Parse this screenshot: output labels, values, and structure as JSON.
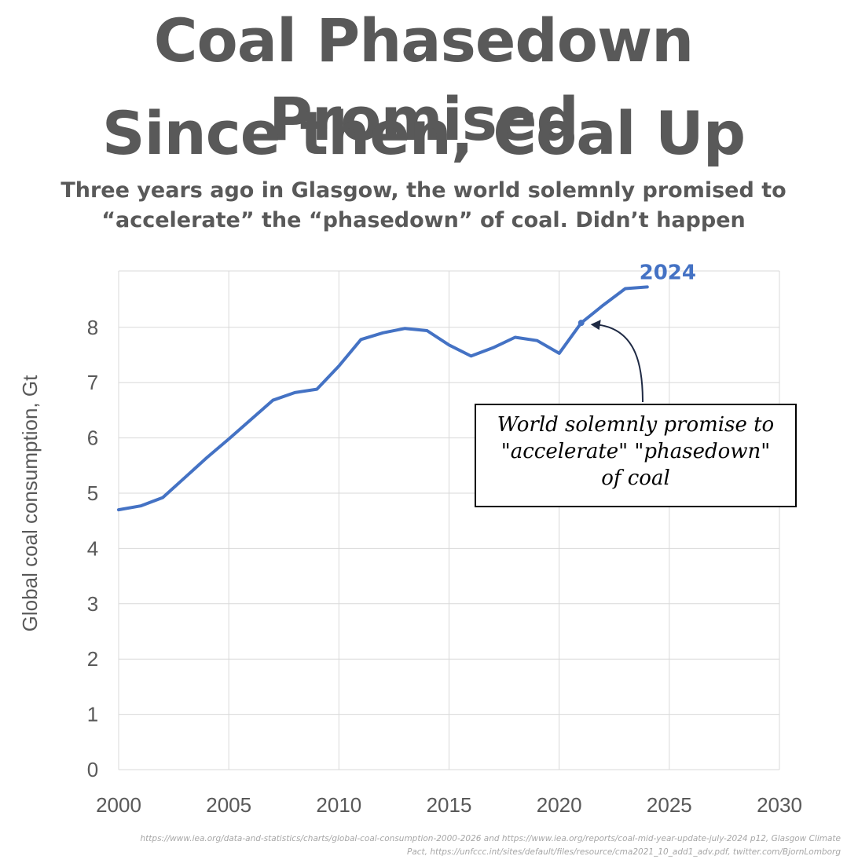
{
  "title": {
    "line1": "Coal Phasedown Promised",
    "line2": "Since then, Coal Up"
  },
  "subtitle": {
    "line1": "Three years ago in Glasgow, the world solemnly promised to",
    "line2": "“accelerate” the “phasedown” of coal. Didn’t happen"
  },
  "annotation": {
    "line1": "World solemnly promise to",
    "line2": "\"accelerate\" \"phasedown\"",
    "line3": "of coal",
    "point_year": 2021
  },
  "source": {
    "line1": "https://www.iea.org/data-and-statistics/charts/global-coal-consumption-2000-2026 and https://www.iea.org/reports/coal-mid-year-update-july-2024 p12, Glasgow Climate",
    "line2": "Pact, https://unfccc.int/sites/default/files/resource/cma2021_10_add1_adv.pdf, twitter.com/BjornLomborg"
  },
  "colors": {
    "series": "#4472c4",
    "text": "#595959",
    "grid": "#d9d9d9"
  },
  "chart_data": {
    "type": "line",
    "title": "Coal Phasedown Promised",
    "xlabel": "",
    "ylabel": "Global coal consumption, Gt",
    "xlim": [
      2000,
      2030
    ],
    "ylim": [
      0,
      8.8
    ],
    "xticks": [
      2000,
      2005,
      2010,
      2015,
      2020,
      2025,
      2030
    ],
    "yticks": [
      0,
      1,
      2,
      3,
      4,
      5,
      6,
      7,
      8
    ],
    "grid": true,
    "series": [
      {
        "name": "Global coal consumption",
        "x": [
          2000,
          2001,
          2002,
          2003,
          2004,
          2005,
          2006,
          2007,
          2008,
          2009,
          2010,
          2011,
          2012,
          2013,
          2014,
          2015,
          2016,
          2017,
          2018,
          2019,
          2020,
          2021,
          2022,
          2023,
          2024
        ],
        "values": [
          4.7,
          4.77,
          4.92,
          5.28,
          5.64,
          5.98,
          6.33,
          6.68,
          6.82,
          6.88,
          7.3,
          7.78,
          7.9,
          7.98,
          7.94,
          7.68,
          7.48,
          7.63,
          7.82,
          7.76,
          7.53,
          8.08,
          8.4,
          8.7,
          8.73
        ]
      }
    ],
    "last_point_label": "2024"
  }
}
